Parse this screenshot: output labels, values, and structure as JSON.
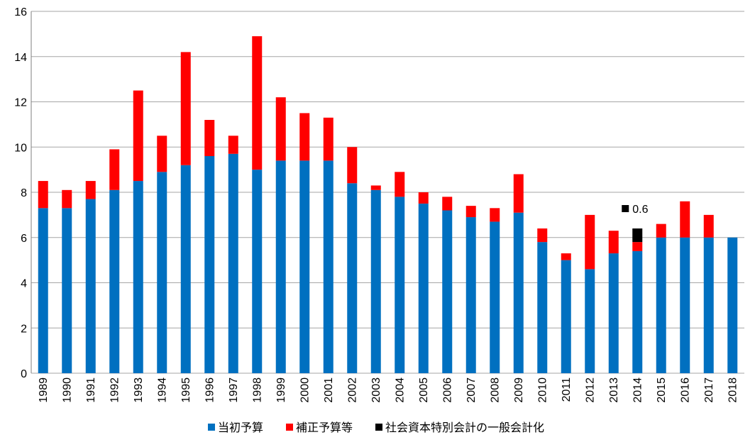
{
  "chart_data": {
    "type": "bar",
    "stacked": true,
    "categories": [
      "1989",
      "1990",
      "1991",
      "1992",
      "1993",
      "1994",
      "1995",
      "1996",
      "1997",
      "1998",
      "1999",
      "2000",
      "2001",
      "2002",
      "2003",
      "2004",
      "2005",
      "2006",
      "2007",
      "2008",
      "2009",
      "2010",
      "2011",
      "2012",
      "2013",
      "2014",
      "2015",
      "2016",
      "2017",
      "2018"
    ],
    "series": [
      {
        "name": "当初予算",
        "color": "#0070c0",
        "values": [
          7.3,
          7.3,
          7.7,
          8.1,
          8.5,
          8.9,
          9.2,
          9.6,
          9.7,
          9.0,
          9.4,
          9.4,
          9.4,
          8.4,
          8.1,
          7.8,
          7.5,
          7.2,
          6.9,
          6.7,
          7.1,
          5.8,
          5.0,
          4.6,
          5.3,
          5.4,
          6.0,
          6.0,
          6.0,
          6.0
        ]
      },
      {
        "name": "補正予算等",
        "color": "#ff0000",
        "values": [
          1.2,
          0.8,
          0.8,
          1.8,
          4.0,
          1.6,
          5.0,
          1.6,
          0.8,
          5.9,
          2.8,
          2.1,
          1.9,
          1.6,
          0.2,
          1.1,
          0.5,
          0.6,
          0.5,
          0.6,
          1.7,
          0.6,
          0.3,
          2.4,
          1.0,
          0.4,
          0.6,
          1.6,
          1.0,
          0.0
        ]
      },
      {
        "name": "社会資本特別会計の一般会計化",
        "color": "#000000",
        "values": [
          0,
          0,
          0,
          0,
          0,
          0,
          0,
          0,
          0,
          0,
          0,
          0,
          0,
          0,
          0,
          0,
          0,
          0,
          0,
          0,
          0,
          0,
          0,
          0,
          0,
          0.6,
          0,
          0,
          0,
          0
        ]
      }
    ],
    "annotations": [
      {
        "category": "2014",
        "text": "0.6"
      }
    ],
    "ylim": [
      0,
      16
    ],
    "yticks": [
      "0",
      "2",
      "4",
      "6",
      "8",
      "10",
      "12",
      "14",
      "16"
    ],
    "grid": true,
    "legend": "bottom",
    "title": "",
    "xlabel": "",
    "ylabel": ""
  }
}
